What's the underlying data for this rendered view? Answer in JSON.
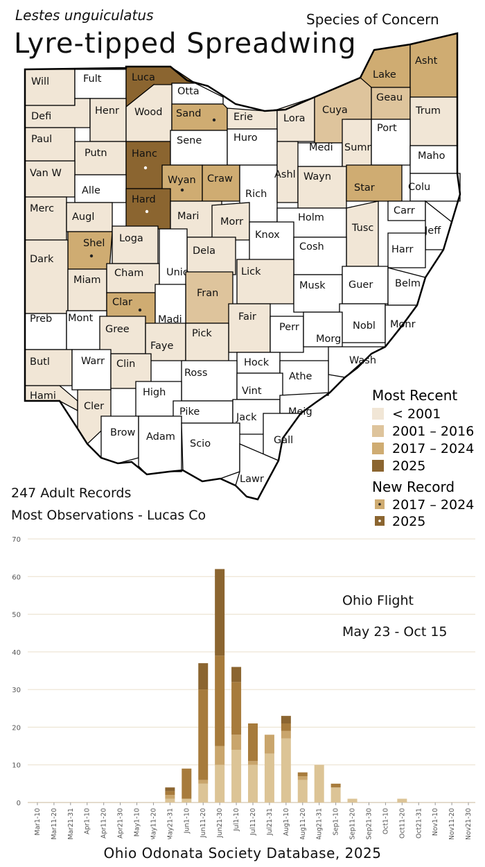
{
  "header": {
    "scientific_name": "Lestes unguiculatus",
    "status": "Species of Concern",
    "common_name": "Lyre-tipped Spreadwing"
  },
  "colors": {
    "none": "#ffffff",
    "pre2001": "#f1e6d6",
    "y2001_2016": "#dec49c",
    "y2017_2024": "#cfac72",
    "y2025": "#8b6530",
    "county_border": "#000000"
  },
  "map": {
    "counties": [
      {
        "name": "Will",
        "period": "pre2001"
      },
      {
        "name": "Fult",
        "period": "none"
      },
      {
        "name": "Luca",
        "period": "y2025"
      },
      {
        "name": "Otta",
        "period": "none"
      },
      {
        "name": "Defi",
        "period": "pre2001"
      },
      {
        "name": "Henr",
        "period": "pre2001"
      },
      {
        "name": "Wood",
        "period": "pre2001"
      },
      {
        "name": "Sand",
        "period": "y2017_2024",
        "new_record": "y2017_2024"
      },
      {
        "name": "Erie",
        "period": "pre2001"
      },
      {
        "name": "Lora",
        "period": "pre2001"
      },
      {
        "name": "Cuya",
        "period": "y2001_2016"
      },
      {
        "name": "Lake",
        "period": "y2017_2024"
      },
      {
        "name": "Asht",
        "period": "y2017_2024"
      },
      {
        "name": "Geau",
        "period": "y2001_2016"
      },
      {
        "name": "Trum",
        "period": "pre2001"
      },
      {
        "name": "Paul",
        "period": "pre2001"
      },
      {
        "name": "Putn",
        "period": "pre2001"
      },
      {
        "name": "Hanc",
        "period": "y2025",
        "new_record": "y2025"
      },
      {
        "name": "Sene",
        "period": "none"
      },
      {
        "name": "Huro",
        "period": "none"
      },
      {
        "name": "Medi",
        "period": "none"
      },
      {
        "name": "Summ",
        "period": "pre2001"
      },
      {
        "name": "Port",
        "period": "none"
      },
      {
        "name": "Maho",
        "period": "none"
      },
      {
        "name": "Van W",
        "period": "pre2001"
      },
      {
        "name": "Alle",
        "period": "none"
      },
      {
        "name": "Wyan",
        "period": "y2017_2024",
        "new_record": "y2017_2024"
      },
      {
        "name": "Craw",
        "period": "y2017_2024"
      },
      {
        "name": "Rich",
        "period": "none"
      },
      {
        "name": "Ashl",
        "period": "pre2001"
      },
      {
        "name": "Wayn",
        "period": "pre2001"
      },
      {
        "name": "Star",
        "period": "y2017_2024"
      },
      {
        "name": "Colu",
        "period": "none"
      },
      {
        "name": "Merc",
        "period": "pre2001"
      },
      {
        "name": "Augl",
        "period": "pre2001"
      },
      {
        "name": "Hard",
        "period": "y2025",
        "new_record": "y2025"
      },
      {
        "name": "Mari",
        "period": "pre2001"
      },
      {
        "name": "Morr",
        "period": "pre2001"
      },
      {
        "name": "Holm",
        "period": "none"
      },
      {
        "name": "Tusc",
        "period": "pre2001"
      },
      {
        "name": "Carr",
        "period": "none"
      },
      {
        "name": "Jeff",
        "period": "none"
      },
      {
        "name": "Shel",
        "period": "y2017_2024",
        "new_record": "y2017_2024"
      },
      {
        "name": "Loga",
        "period": "pre2001"
      },
      {
        "name": "Knox",
        "period": "none"
      },
      {
        "name": "Dela",
        "period": "pre2001"
      },
      {
        "name": "Cosh",
        "period": "none"
      },
      {
        "name": "Harr",
        "period": "none"
      },
      {
        "name": "Dark",
        "period": "pre2001"
      },
      {
        "name": "Miam",
        "period": "pre2001"
      },
      {
        "name": "Cham",
        "period": "pre2001"
      },
      {
        "name": "Unio",
        "period": "none"
      },
      {
        "name": "Lick",
        "period": "pre2001"
      },
      {
        "name": "Musk",
        "period": "none"
      },
      {
        "name": "Guer",
        "period": "none"
      },
      {
        "name": "Belm",
        "period": "none"
      },
      {
        "name": "Clar",
        "period": "y2017_2024",
        "new_record": "y2017_2024"
      },
      {
        "name": "Fran",
        "period": "y2001_2016"
      },
      {
        "name": "Preb",
        "period": "none"
      },
      {
        "name": "Mont",
        "period": "none"
      },
      {
        "name": "Madi",
        "period": "none"
      },
      {
        "name": "Fair",
        "period": "pre2001"
      },
      {
        "name": "Perr",
        "period": "none"
      },
      {
        "name": "Nobl",
        "period": "none"
      },
      {
        "name": "Monr",
        "period": "none"
      },
      {
        "name": "Gree",
        "period": "pre2001"
      },
      {
        "name": "Faye",
        "period": "pre2001"
      },
      {
        "name": "Pick",
        "period": "pre2001"
      },
      {
        "name": "Morg",
        "period": "none"
      },
      {
        "name": "Butl",
        "period": "pre2001"
      },
      {
        "name": "Warr",
        "period": "none"
      },
      {
        "name": "Clin",
        "period": "pre2001"
      },
      {
        "name": "Hock",
        "period": "none"
      },
      {
        "name": "Wash",
        "period": "none"
      },
      {
        "name": "Ross",
        "period": "none"
      },
      {
        "name": "Athe",
        "period": "none"
      },
      {
        "name": "Vint",
        "period": "none"
      },
      {
        "name": "Hami",
        "period": "pre2001"
      },
      {
        "name": "Cler",
        "period": "pre2001"
      },
      {
        "name": "High",
        "period": "none"
      },
      {
        "name": "Pike",
        "period": "none"
      },
      {
        "name": "Jack",
        "period": "none"
      },
      {
        "name": "Meig",
        "period": "none"
      },
      {
        "name": "Brow",
        "period": "none"
      },
      {
        "name": "Adam",
        "period": "none"
      },
      {
        "name": "Scio",
        "period": "none"
      },
      {
        "name": "Gall",
        "period": "none"
      },
      {
        "name": "Lawr",
        "period": "none"
      }
    ]
  },
  "legend": {
    "most_recent_title": "Most Recent",
    "most_recent_items": [
      {
        "label": "< 2001",
        "color_key": "pre2001"
      },
      {
        "label": "2001 – 2016",
        "color_key": "y2001_2016"
      },
      {
        "label": "2017 – 2024",
        "color_key": "y2017_2024"
      },
      {
        "label": "2025",
        "color_key": "y2025"
      }
    ],
    "new_record_title": "New Record",
    "new_record_items": [
      {
        "label": "2017 – 2024",
        "color_key": "y2017_2024"
      },
      {
        "label": "2025",
        "color_key": "y2025"
      }
    ]
  },
  "summary": {
    "records": "247 Adult Records",
    "most_observations": "Most Observations - Lucas Co"
  },
  "chart_data": {
    "type": "bar",
    "stacked": true,
    "categories": [
      "Mar1-10",
      "Mar11-20",
      "Mar21-31",
      "Apr1-10",
      "Apr11-20",
      "Apr21-30",
      "May1-10",
      "May11-20",
      "May21-31",
      "Jun1-10",
      "Jun11-20",
      "Jun21-30",
      "Jul1-10",
      "Jul11-20",
      "Jul21-31",
      "Aug1-10",
      "Aug11-20",
      "Aug21-31",
      "Sep1-10",
      "Sep11-20",
      "Sep21-30",
      "Oct1-10",
      "Oct11-20",
      "Oct21-31",
      "Nov1-10",
      "Nov11-20",
      "Nov21-30"
    ],
    "series": [
      {
        "color_key": "y2001_2016",
        "values": [
          0,
          0,
          0,
          0,
          0,
          0,
          0,
          0,
          1,
          1,
          5,
          10,
          14,
          10,
          13,
          17,
          6,
          10,
          4,
          1,
          0,
          0,
          1,
          0,
          0,
          0,
          0
        ]
      },
      {
        "color_key": "y2017_2024",
        "values": [
          0,
          0,
          0,
          0,
          0,
          0,
          0,
          0,
          1,
          0,
          1,
          5,
          4,
          1,
          5,
          2,
          1,
          0,
          0,
          0,
          0,
          0,
          0,
          0,
          0,
          0,
          0
        ]
      },
      {
        "color_key": "y2017_2024_mid",
        "values": [
          0,
          0,
          0,
          0,
          0,
          0,
          0,
          0,
          1,
          8,
          24,
          24,
          14,
          10,
          0,
          2,
          1,
          0,
          1,
          0,
          0,
          0,
          0,
          0,
          0,
          0,
          0
        ]
      },
      {
        "color_key": "y2025",
        "values": [
          0,
          0,
          0,
          0,
          0,
          0,
          0,
          0,
          1,
          0,
          7,
          23,
          4,
          0,
          0,
          2,
          0,
          0,
          0,
          0,
          0,
          0,
          0,
          0,
          0,
          0,
          0
        ]
      }
    ],
    "series_colors": {
      "y2001_2016": "#dcc496",
      "y2017_2024": "#c9a56c",
      "y2017_2024_mid": "#a77b3c",
      "y2025": "#8b6530"
    },
    "ylim": [
      0,
      70
    ],
    "yticks": [
      0,
      10,
      20,
      30,
      40,
      50,
      60,
      70
    ],
    "grid": true,
    "annotation_title": "Ohio Flight",
    "annotation_range": "May 23 - Oct 15"
  },
  "footer": {
    "source": "Ohio Odonata Society Database, 2025"
  }
}
